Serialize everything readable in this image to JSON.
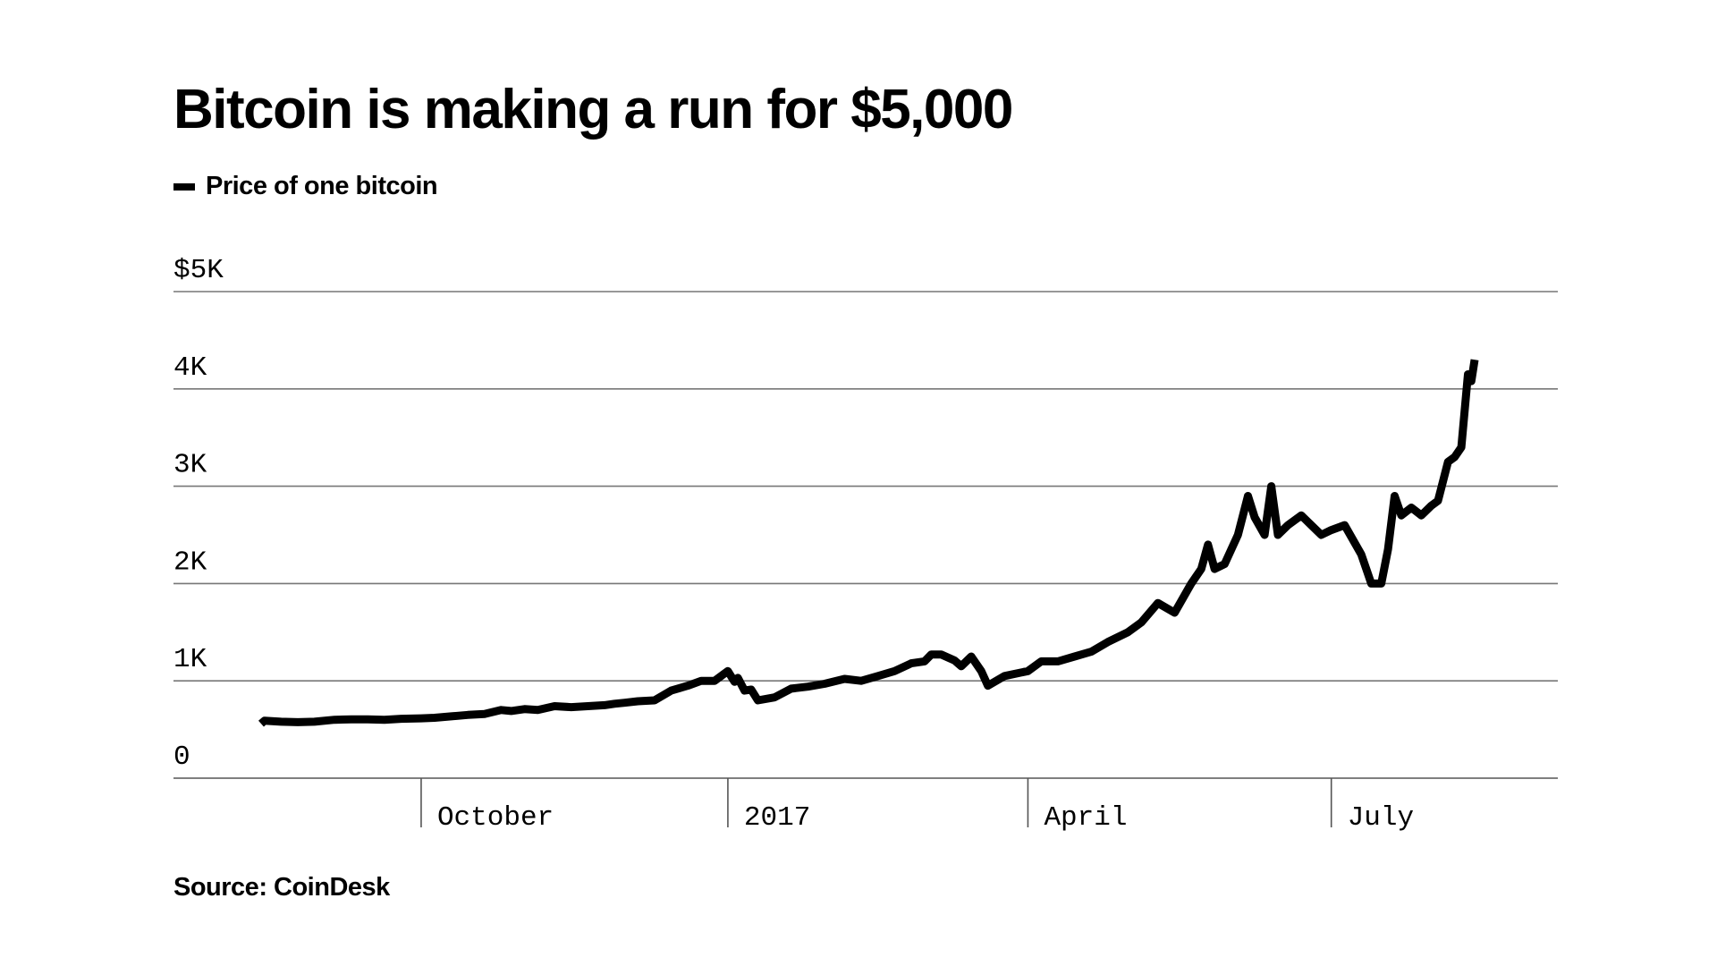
{
  "chart_data": {
    "type": "line",
    "title": "Bitcoin is making a run for $5,000",
    "source": "Source: CoinDesk",
    "legend_position": "top-left",
    "grid": true,
    "x_range": [
      "2016-08-14",
      "2017-08-13"
    ],
    "ylim": [
      0,
      5000
    ],
    "y_ticks": [
      0,
      1000,
      2000,
      3000,
      4000,
      5000
    ],
    "y_tick_labels": [
      "0",
      "1K",
      "2K",
      "3K",
      "4K",
      "$5K"
    ],
    "x_ticks": [
      {
        "date": "2016-10-01",
        "label": "October"
      },
      {
        "date": "2017-01-01",
        "label": "2017"
      },
      {
        "date": "2017-04-01",
        "label": "April"
      },
      {
        "date": "2017-07-01",
        "label": "July"
      }
    ],
    "line_color": "#000000",
    "series": [
      {
        "name": "Price of one bitcoin",
        "x": [
          "2016-08-14",
          "2016-08-15",
          "2016-08-20",
          "2016-08-25",
          "2016-08-30",
          "2016-09-05",
          "2016-09-10",
          "2016-09-15",
          "2016-09-20",
          "2016-09-25",
          "2016-10-01",
          "2016-10-05",
          "2016-10-10",
          "2016-10-15",
          "2016-10-20",
          "2016-10-25",
          "2016-10-28",
          "2016-11-01",
          "2016-11-05",
          "2016-11-10",
          "2016-11-15",
          "2016-11-20",
          "2016-11-25",
          "2016-11-28",
          "2016-12-01",
          "2016-12-05",
          "2016-12-10",
          "2016-12-15",
          "2016-12-20",
          "2016-12-24",
          "2016-12-28",
          "2017-01-01",
          "2017-01-03",
          "2017-01-04",
          "2017-01-06",
          "2017-01-08",
          "2017-01-10",
          "2017-01-15",
          "2017-01-20",
          "2017-01-25",
          "2017-01-30",
          "2017-02-05",
          "2017-02-10",
          "2017-02-15",
          "2017-02-20",
          "2017-02-25",
          "2017-03-01",
          "2017-03-03",
          "2017-03-06",
          "2017-03-10",
          "2017-03-12",
          "2017-03-15",
          "2017-03-18",
          "2017-03-20",
          "2017-03-25",
          "2017-04-01",
          "2017-04-05",
          "2017-04-10",
          "2017-04-15",
          "2017-04-20",
          "2017-04-25",
          "2017-05-01",
          "2017-05-05",
          "2017-05-10",
          "2017-05-15",
          "2017-05-20",
          "2017-05-23",
          "2017-05-25",
          "2017-05-27",
          "2017-05-30",
          "2017-06-03",
          "2017-06-06",
          "2017-06-08",
          "2017-06-11",
          "2017-06-13",
          "2017-06-15",
          "2017-06-18",
          "2017-06-22",
          "2017-06-25",
          "2017-06-28",
          "2017-07-01",
          "2017-07-05",
          "2017-07-10",
          "2017-07-13",
          "2017-07-16",
          "2017-07-18",
          "2017-07-20",
          "2017-07-22",
          "2017-07-25",
          "2017-07-28",
          "2017-07-31",
          "2017-08-02",
          "2017-08-05",
          "2017-08-07",
          "2017-08-09",
          "2017-08-11",
          "2017-08-12",
          "2017-08-13"
        ],
        "y": [
          560,
          590,
          580,
          575,
          580,
          600,
          605,
          605,
          600,
          610,
          615,
          620,
          635,
          650,
          660,
          700,
          690,
          710,
          700,
          740,
          730,
          740,
          750,
          765,
          775,
          790,
          800,
          900,
          950,
          1000,
          1000,
          1100,
          990,
          1030,
          900,
          910,
          800,
          830,
          920,
          940,
          970,
          1020,
          1000,
          1050,
          1100,
          1180,
          1200,
          1270,
          1270,
          1210,
          1150,
          1250,
          1100,
          950,
          1050,
          1100,
          1200,
          1200,
          1250,
          1300,
          1400,
          1500,
          1600,
          1800,
          1700,
          2000,
          2150,
          2400,
          2150,
          2200,
          2500,
          2900,
          2680,
          2500,
          3000,
          2500,
          2600,
          2700,
          2600,
          2500,
          2550,
          2600,
          2300,
          2000,
          2000,
          2350,
          2900,
          2700,
          2780,
          2700,
          2800,
          2850,
          3250,
          3300,
          3400,
          4150,
          4080,
          4300
        ]
      }
    ]
  }
}
